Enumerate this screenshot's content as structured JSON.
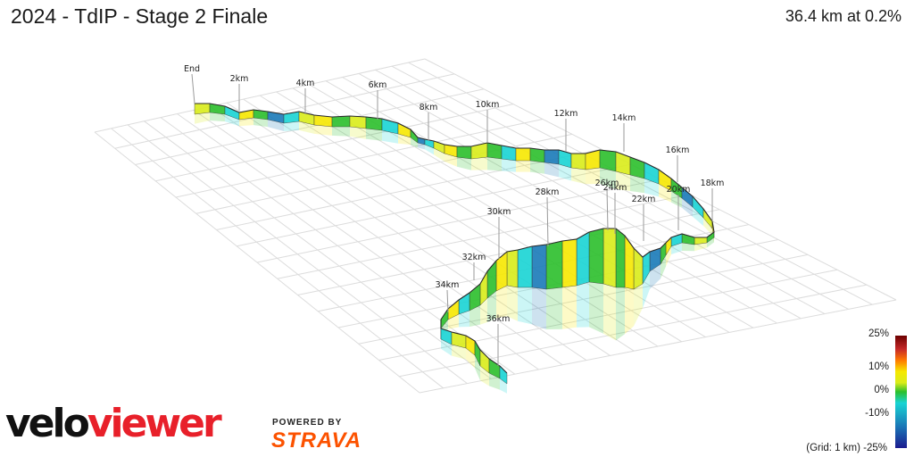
{
  "header": {
    "title": "2024 - TdIP - Stage 2 Finale",
    "summary": "36.4 km at 0.2%"
  },
  "profile": {
    "distance_labels": [
      "End",
      "2km",
      "4km",
      "6km",
      "8km",
      "10km",
      "12km",
      "14km",
      "16km",
      "18km",
      "20km",
      "22km",
      "24km",
      "26km",
      "28km",
      "30km",
      "32km",
      "34km",
      "36km"
    ]
  },
  "legend": {
    "labels": [
      "25%",
      "10%",
      "0%",
      "-10%",
      "-25%"
    ],
    "grid_note": "(Grid: 1 km)",
    "colors": [
      "#6b0000",
      "#c62828",
      "#ff7a00",
      "#f6e800",
      "#d9ec1a",
      "#2bbf2b",
      "#18d4d4",
      "#1a7ab8",
      "#1b1b8f"
    ]
  },
  "branding": {
    "logo_part1": "velo",
    "logo_part2": "viewer",
    "powered_by": "POWERED BY",
    "strava": "STRAVA",
    "logo_color": "#e8202a",
    "strava_color": "#fc5200"
  }
}
